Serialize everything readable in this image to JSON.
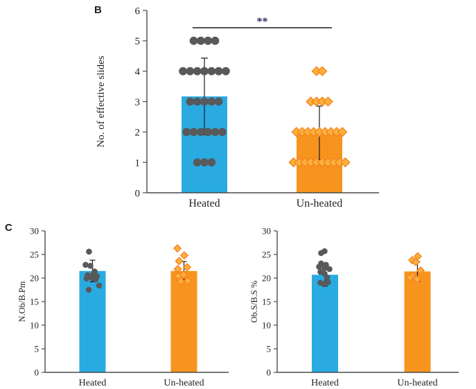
{
  "panels": [
    {
      "label": "B"
    },
    {
      "label": "C"
    }
  ],
  "colors": {
    "heated_bar": "#29abe2",
    "unheated_bar": "#f7941d",
    "dot": "#58595b",
    "diamond_fill": "#fbb03b",
    "diamond_stroke": "#f58220",
    "axis": "#4a4a4a",
    "text": "#231f20",
    "error": "#1a1a1a",
    "sig_line": "#1a1a1a",
    "sig_text": "#2b2b5e"
  },
  "chart_data": [
    {
      "id": "effective-slides",
      "type": "bar",
      "panel": "B",
      "ylabel": "No. of effective slides",
      "ylim": [
        0,
        6
      ],
      "yticks": [
        0,
        1,
        2,
        3,
        4,
        5,
        6
      ],
      "grid": false,
      "legend": "none",
      "categories": [
        "Heated",
        "Un-heated"
      ],
      "bar_values": [
        3.17,
        1.97
      ],
      "errors": [
        1.26,
        0.88
      ],
      "bar_colors": [
        "#29abe2",
        "#f7941d"
      ],
      "significance": "**",
      "points": [
        {
          "category": "Heated",
          "marker": "circle",
          "fill": "#58595b",
          "values": [
            5,
            5,
            5,
            5,
            4,
            4,
            4,
            4,
            4,
            4,
            4,
            3,
            3,
            3,
            3,
            3,
            2,
            2,
            2,
            2,
            2,
            2,
            1,
            1,
            1
          ]
        },
        {
          "category": "Un-heated",
          "marker": "diamond",
          "fill": "#fbb03b",
          "stroke": "#f58220",
          "values": [
            4,
            4,
            3,
            3,
            3,
            3,
            2,
            2,
            2,
            2,
            2,
            2,
            2,
            2,
            2,
            1,
            1,
            1,
            1,
            1,
            1,
            1,
            1,
            1,
            1
          ]
        }
      ]
    },
    {
      "id": "n-ob-b-pm",
      "type": "bar",
      "panel": "C",
      "ylabel": "N.Ob/B.Pm",
      "ylim": [
        0,
        30
      ],
      "yticks": [
        0,
        5,
        10,
        15,
        20,
        25,
        30
      ],
      "grid": false,
      "legend": "none",
      "categories": [
        "Heated",
        "Un-heated"
      ],
      "bar_values": [
        21.5,
        21.5
      ],
      "errors": [
        2.3,
        2.0
      ],
      "bar_colors": [
        "#29abe2",
        "#f7941d"
      ],
      "points": [
        {
          "category": "Heated",
          "marker": "circle",
          "fill": "#58595b",
          "values": [
            25.6,
            22.8,
            22.6,
            21.4,
            20.9,
            20.6,
            20.4,
            20.1,
            19.9,
            19.7,
            18.4,
            17.5
          ],
          "dx": [
            -5,
            -10,
            -3,
            3,
            1.5,
            -7,
            6.5,
            -1.5,
            -8.5,
            4.5,
            9.5,
            -5.5
          ]
        },
        {
          "category": "Un-heated",
          "marker": "diamond",
          "fill": "#fbb03b",
          "stroke": "#f58220",
          "values": [
            26.3,
            24.8,
            23.6,
            22.3,
            21.9,
            20.7,
            20.4,
            19.4,
            19.3
          ],
          "dx": [
            -9.5,
            0.5,
            -7,
            4.5,
            -9,
            -0.5,
            -8,
            5.5,
            -4.5
          ]
        }
      ]
    },
    {
      "id": "ob-s-b-s",
      "type": "bar",
      "panel": "C",
      "ylabel": "Ob.S/B.S %",
      "ylim": [
        0,
        30
      ],
      "yticks": [
        0,
        5,
        10,
        15,
        20,
        25,
        30
      ],
      "grid": false,
      "legend": "none",
      "categories": [
        "Heated",
        "Un-heated"
      ],
      "bar_values": [
        20.7,
        21.4
      ],
      "errors": [
        2.4,
        2.1
      ],
      "bar_colors": [
        "#29abe2",
        "#f7941d"
      ],
      "points": [
        {
          "category": "Heated",
          "marker": "circle",
          "fill": "#58595b",
          "values": [
            25.7,
            25.3,
            23.1,
            22.8,
            22.4,
            22.1,
            21.9,
            21.3,
            20.9,
            20.1,
            19.1,
            19.0,
            18.7
          ],
          "dx": [
            -0.5,
            -5.5,
            -5.5,
            1.5,
            -8.5,
            -0.5,
            6.5,
            -6.5,
            -0.5,
            3,
            4.5,
            -6.5,
            -1.5
          ]
        },
        {
          "category": "Un-heated",
          "marker": "diamond",
          "fill": "#fbb03b",
          "stroke": "#f58220",
          "values": [
            24.6,
            23.8,
            23.4,
            21.6,
            20.4,
            20.1,
            19.9,
            19.7
          ],
          "dx": [
            0.5,
            -7.5,
            -2.5,
            4.5,
            -7.5,
            -10.5,
            -2.5,
            -0.5
          ]
        }
      ]
    }
  ]
}
